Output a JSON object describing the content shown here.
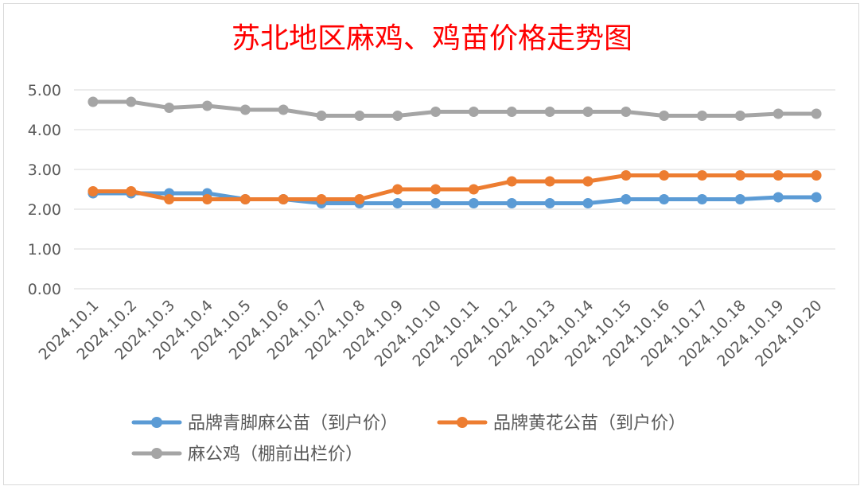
{
  "chart_data": {
    "type": "line",
    "title": "苏北地区麻鸡、鸡苗价格走势图",
    "xlabel": "",
    "ylabel": "",
    "ylim": [
      0,
      5
    ],
    "yticks": [
      "0.00",
      "1.00",
      "2.00",
      "3.00",
      "4.00",
      "5.00"
    ],
    "grid": true,
    "legend_position": "bottom",
    "categories": [
      "2024.10.1",
      "2024.10.2",
      "2024.10.3",
      "2024.10.4",
      "2024.10.5",
      "2024.10.6",
      "2024.10.7",
      "2024.10.8",
      "2024.10.9",
      "2024.10.10",
      "2024.10.11",
      "2024.10.12",
      "2024.10.13",
      "2024.10.14",
      "2024.10.15",
      "2024.10.16",
      "2024.10.17",
      "2024.10.18",
      "2024.10.19",
      "2024.10.20"
    ],
    "series": [
      {
        "name": "品牌青脚麻公苗（到户价）",
        "color": "#5b9bd5",
        "values": [
          2.4,
          2.4,
          2.4,
          2.4,
          2.25,
          2.25,
          2.15,
          2.15,
          2.15,
          2.15,
          2.15,
          2.15,
          2.15,
          2.15,
          2.25,
          2.25,
          2.25,
          2.25,
          2.3,
          2.3
        ]
      },
      {
        "name": "品牌黄花公苗（到户价）",
        "color": "#ed7d31",
        "values": [
          2.45,
          2.45,
          2.25,
          2.25,
          2.25,
          2.25,
          2.25,
          2.25,
          2.5,
          2.5,
          2.5,
          2.7,
          2.7,
          2.7,
          2.85,
          2.85,
          2.85,
          2.85,
          2.85,
          2.85
        ]
      },
      {
        "name": "麻公鸡（棚前出栏价）",
        "color": "#a5a5a5",
        "values": [
          4.7,
          4.7,
          4.55,
          4.6,
          4.5,
          4.5,
          4.35,
          4.35,
          4.35,
          4.45,
          4.45,
          4.45,
          4.45,
          4.45,
          4.45,
          4.35,
          4.35,
          4.35,
          4.4,
          4.4
        ]
      }
    ]
  }
}
